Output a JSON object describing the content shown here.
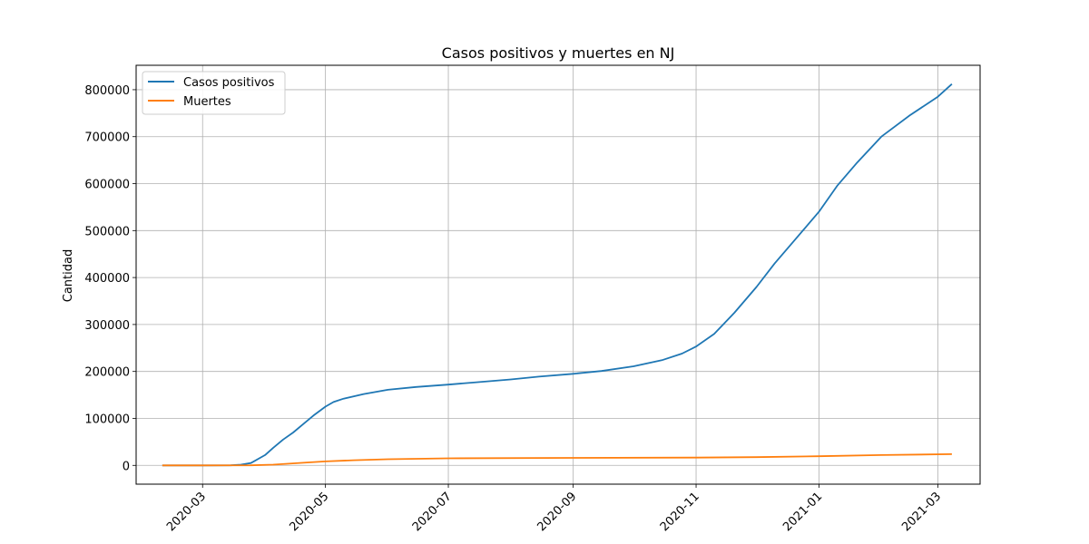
{
  "chart_data": {
    "type": "line",
    "title": "Casos positivos y muertes en NJ",
    "xlabel": "",
    "ylabel": "Cantidad",
    "grid": true,
    "legend_position": "top-left",
    "xlim": [
      "2020-01-28",
      "2021-03-22"
    ],
    "ylim": [
      -40000,
      852000
    ],
    "x_ticks": [
      "2020-03",
      "2020-05",
      "2020-07",
      "2020-09",
      "2020-11",
      "2021-01",
      "2021-03"
    ],
    "y_ticks": [
      0,
      100000,
      200000,
      300000,
      400000,
      500000,
      600000,
      700000,
      800000
    ],
    "series": [
      {
        "name": "Casos positivos",
        "color": "#1f77b4",
        "x": [
          "2020-02-10",
          "2020-03-01",
          "2020-03-15",
          "2020-03-20",
          "2020-03-25",
          "2020-04-01",
          "2020-04-05",
          "2020-04-10",
          "2020-04-15",
          "2020-04-20",
          "2020-04-25",
          "2020-05-01",
          "2020-05-05",
          "2020-05-10",
          "2020-05-20",
          "2020-06-01",
          "2020-06-15",
          "2020-07-01",
          "2020-07-15",
          "2020-08-01",
          "2020-08-15",
          "2020-09-01",
          "2020-09-15",
          "2020-10-01",
          "2020-10-15",
          "2020-10-25",
          "2020-11-01",
          "2020-11-10",
          "2020-11-20",
          "2020-12-01",
          "2020-12-10",
          "2020-12-20",
          "2021-01-01",
          "2021-01-10",
          "2021-01-20",
          "2021-02-01",
          "2021-02-15",
          "2021-03-01",
          "2021-03-08"
        ],
        "values": [
          0,
          0,
          200,
          1500,
          5000,
          22000,
          37000,
          55000,
          70000,
          88000,
          106000,
          125000,
          135000,
          142000,
          152000,
          161000,
          167000,
          172000,
          177000,
          183000,
          189000,
          195000,
          201000,
          211000,
          224000,
          238000,
          253000,
          280000,
          325000,
          380000,
          430000,
          480000,
          540000,
          595000,
          645000,
          700000,
          745000,
          785000,
          812000
        ]
      },
      {
        "name": "Muertes",
        "color": "#ff7f0e",
        "x": [
          "2020-02-10",
          "2020-03-01",
          "2020-03-25",
          "2020-04-05",
          "2020-04-20",
          "2020-05-01",
          "2020-05-15",
          "2020-06-01",
          "2020-07-01",
          "2020-09-01",
          "2020-11-01",
          "2020-12-01",
          "2021-01-01",
          "2021-02-01",
          "2021-03-08"
        ],
        "values": [
          0,
          0,
          200,
          1500,
          5500,
          8500,
          11000,
          13000,
          15000,
          16000,
          16500,
          17500,
          19500,
          22000,
          24000
        ]
      }
    ]
  }
}
